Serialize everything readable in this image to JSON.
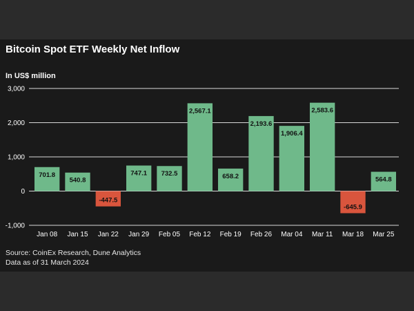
{
  "header": {
    "title": "Bitcoin Spot ETF Weekly Net Inflow",
    "unit_label": "In US$ million"
  },
  "footer": {
    "source": "Source: CoinEx Research, Dune Analytics",
    "as_of": "Data as of 31 March 2024"
  },
  "colors": {
    "positive": "#6fb98a",
    "negative": "#d9553d",
    "gridline": "#d9d9d9",
    "background": "#1a1a1a"
  },
  "chart_data": {
    "type": "bar",
    "title": "Bitcoin Spot ETF Weekly Net Inflow",
    "ylabel": "In US$ million",
    "xlabel": "",
    "categories": [
      "Jan 08",
      "Jan 15",
      "Jan 22",
      "Jan 29",
      "Feb 05",
      "Feb 12",
      "Feb 19",
      "Feb 26",
      "Mar 04",
      "Mar 11",
      "Mar 18",
      "Mar 25"
    ],
    "values": [
      701.8,
      540.8,
      -447.5,
      747.1,
      732.5,
      2567.1,
      658.2,
      2193.6,
      1906.4,
      2583.6,
      -645.9,
      564.8
    ],
    "value_labels": [
      "701.8",
      "540.8",
      "-447.5",
      "747.1",
      "732.5",
      "2,567.1",
      "658.2",
      "2,193.6",
      "1,906.4",
      "2,583.6",
      "-645.9",
      "564.8"
    ],
    "yticks": [
      3000,
      2000,
      1000,
      0,
      -1000
    ],
    "ytick_labels": [
      "3,000",
      "2,000",
      "1,000",
      "0",
      "-1,000"
    ],
    "ylim": [
      -1000,
      3000
    ],
    "grid": true,
    "legend": "none"
  }
}
